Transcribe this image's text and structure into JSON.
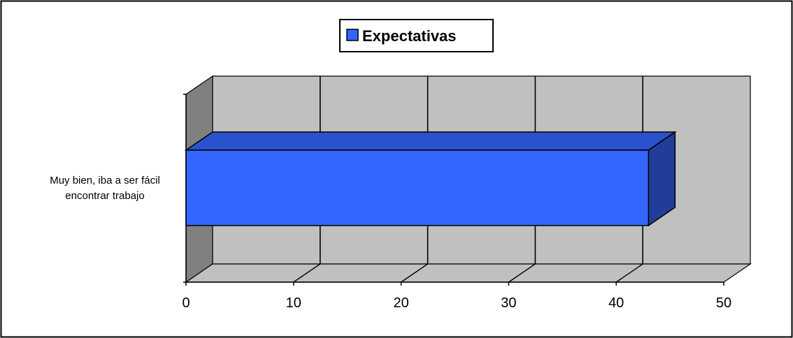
{
  "chart_data": {
    "type": "bar",
    "orientation": "horizontal",
    "style": "3d",
    "categories": [
      "Muy bien, iba a ser fácil encontrar trabajo"
    ],
    "category_lines": [
      "Muy bien, iba a ser fácil",
      "encontrar trabajo"
    ],
    "series": [
      {
        "name": "Expectativas",
        "values": [
          43
        ]
      }
    ],
    "xlim": [
      0,
      50
    ],
    "xticks": [
      0,
      10,
      20,
      30,
      40,
      50
    ],
    "grid": true,
    "legend": "top-center",
    "colors": {
      "bar_front": "#3366FF",
      "bar_top": "#2952CC",
      "bar_side": "#1F3D99",
      "back_wall": "#C0C0C0",
      "side_wall": "#808080",
      "floor": "#C0C0C0"
    }
  }
}
